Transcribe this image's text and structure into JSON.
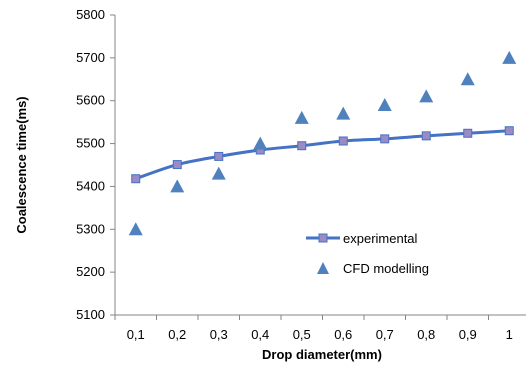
{
  "chart_data": {
    "type": "line",
    "title": "",
    "xlabel": "Drop diameter(mm)",
    "ylabel": "Coalescence time(ms)",
    "categories": [
      "0,1",
      "0,2",
      "0,3",
      "0,4",
      "0,5",
      "0,6",
      "0,7",
      "0,8",
      "0,9",
      "1"
    ],
    "ylim": [
      5100,
      5800
    ],
    "yticks": [
      "5100",
      "5200",
      "5300",
      "5400",
      "5500",
      "5600",
      "5700",
      "5800"
    ],
    "ytick_values": [
      5100,
      5200,
      5300,
      5400,
      5500,
      5600,
      5700,
      5800
    ],
    "grid": false,
    "legend_position": "lower-right",
    "series": [
      {
        "name": "experimental",
        "style": "line-square",
        "color": "#4472C4",
        "marker_color": "#9B8BC4",
        "values": [
          5418,
          5451,
          5470,
          5485,
          5495,
          5506,
          5511,
          5518,
          5524,
          5530
        ]
      },
      {
        "name": "CFD modelling",
        "style": "triangle",
        "color": "#4F81BD",
        "values": [
          5300,
          5400,
          5430,
          5500,
          5560,
          5570,
          5590,
          5610,
          5650,
          5700
        ]
      }
    ]
  }
}
